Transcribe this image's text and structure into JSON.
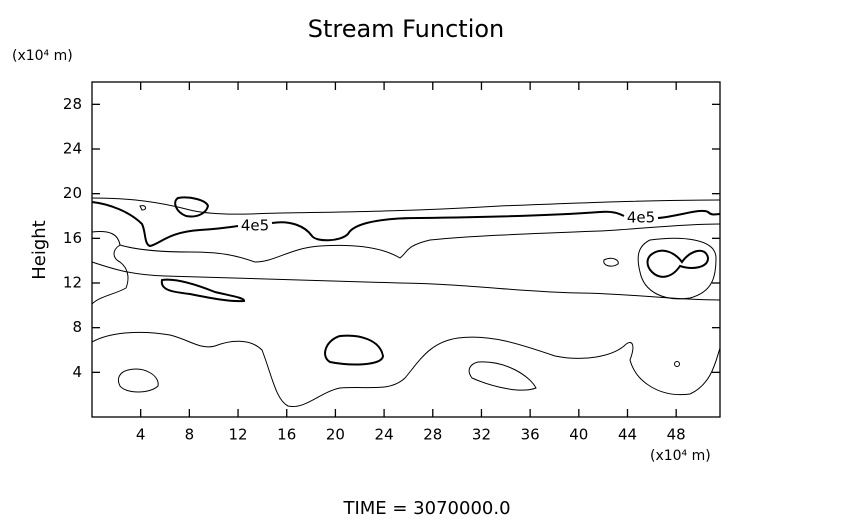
{
  "chart_data": {
    "type": "contour",
    "title": "Stream Function",
    "y_unit": "(x10⁴ m)",
    "x_unit": "(x10⁴ m)",
    "ylabel": "Height",
    "footer": "TIME = 3070000.0",
    "contour_labels": [
      "4e5",
      "4e5"
    ],
    "xlim": [
      0,
      51.6
    ],
    "ylim": [
      0,
      30
    ],
    "xticks": [
      4,
      8,
      12,
      16,
      20,
      24,
      28,
      32,
      36,
      40,
      44,
      48
    ],
    "yticks": [
      4,
      8,
      12,
      16,
      20,
      24,
      28
    ]
  }
}
